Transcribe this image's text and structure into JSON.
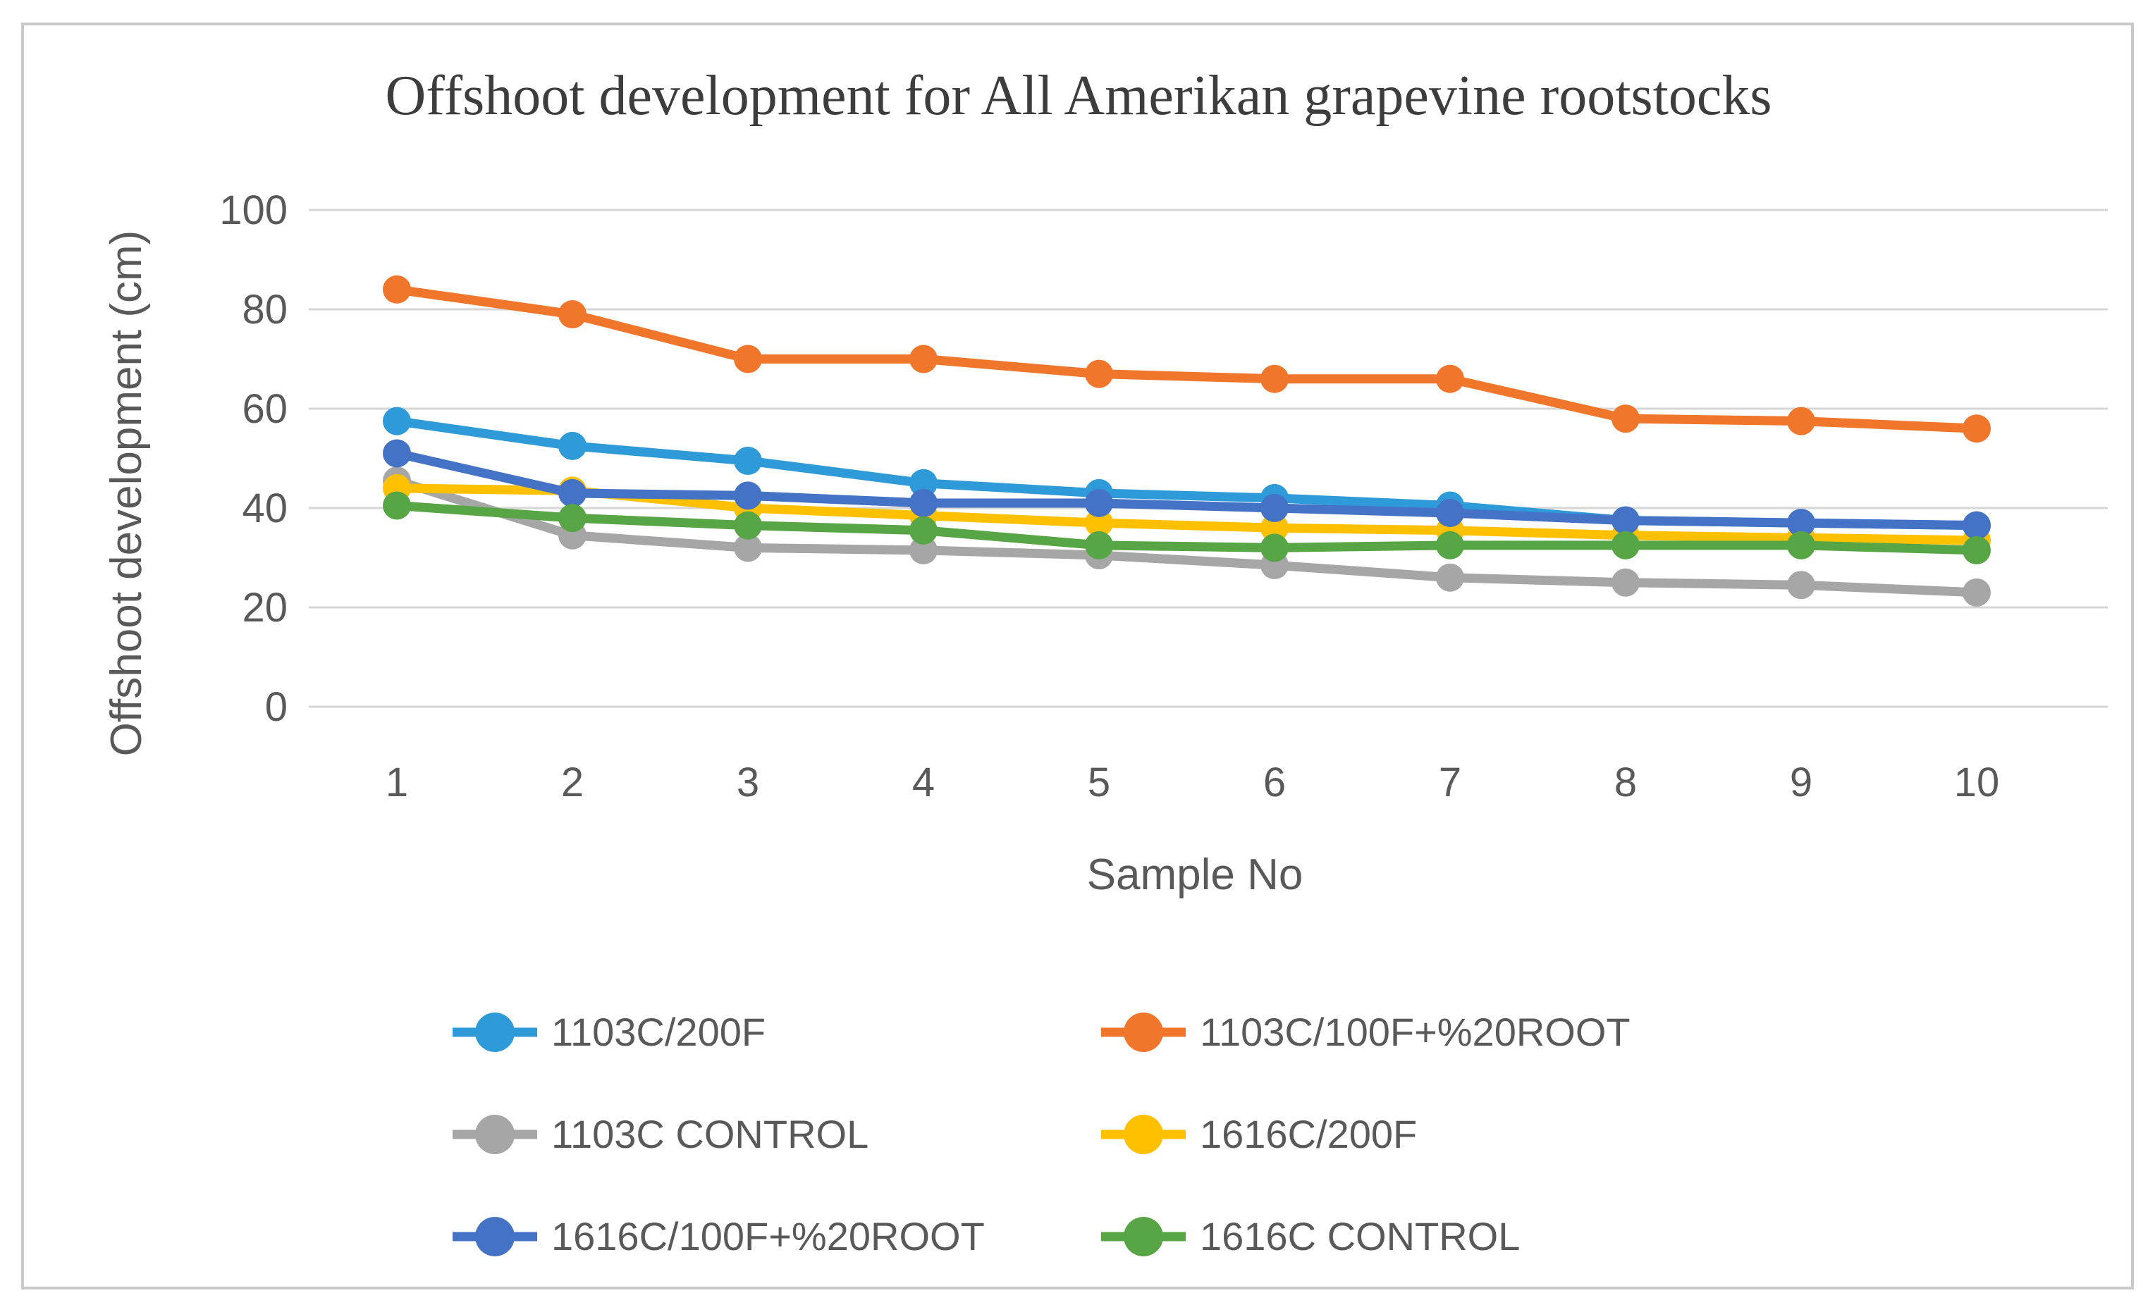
{
  "figure": {
    "title": "Offshoot development for All Amerikan grapevine rootstocks",
    "x_axis_label": "Sample No",
    "y_axis_label": "Offshoot development (cm)"
  },
  "chart_data": {
    "type": "line",
    "title": "Offshoot development for All Amerikan grapevine rootstocks",
    "xlabel": "Sample No",
    "ylabel": "Offshoot development (cm)",
    "categories": [
      "1",
      "2",
      "3",
      "4",
      "5",
      "6",
      "7",
      "8",
      "9",
      "10"
    ],
    "ylim": [
      0,
      100
    ],
    "yticks": [
      0,
      20,
      40,
      60,
      80,
      100
    ],
    "grid": true,
    "legend_position": "bottom",
    "marker": "circle",
    "series": [
      {
        "name": "1103C/200F",
        "color": "#2E9BD8",
        "values": [
          57.5,
          52.5,
          49.5,
          45,
          43,
          42,
          40.5,
          37.5,
          37,
          36.5
        ]
      },
      {
        "name": "1103C/100F+%20ROOT",
        "color": "#F0762C",
        "values": [
          84,
          79,
          70,
          70,
          67,
          66,
          66,
          58,
          57.5,
          56
        ]
      },
      {
        "name": "1103C CONTROL",
        "color": "#A6A6A6",
        "values": [
          45.5,
          34.5,
          32,
          31.5,
          30.5,
          28.5,
          26,
          25,
          24.5,
          23
        ]
      },
      {
        "name": "1616C/200F",
        "color": "#FFC000",
        "values": [
          44,
          43.5,
          40,
          38.5,
          37,
          36,
          35.5,
          34.5,
          34,
          33.5
        ]
      },
      {
        "name": "1616C/100F+%20ROOT",
        "color": "#4472C4",
        "values": [
          51,
          43,
          42.5,
          41,
          41,
          40,
          39,
          37.5,
          37,
          36.5
        ]
      },
      {
        "name": "1616C CONTROL",
        "color": "#57A544",
        "values": [
          40.5,
          38,
          36.5,
          35.5,
          32.5,
          32,
          32.5,
          32.5,
          32.5,
          31.5
        ]
      }
    ]
  },
  "style_colors": {
    "gridline": "#D6D6D6",
    "frame_border": "#C9C9C9",
    "text_gray": "#595959",
    "title_gray": "#3D3D3D"
  }
}
